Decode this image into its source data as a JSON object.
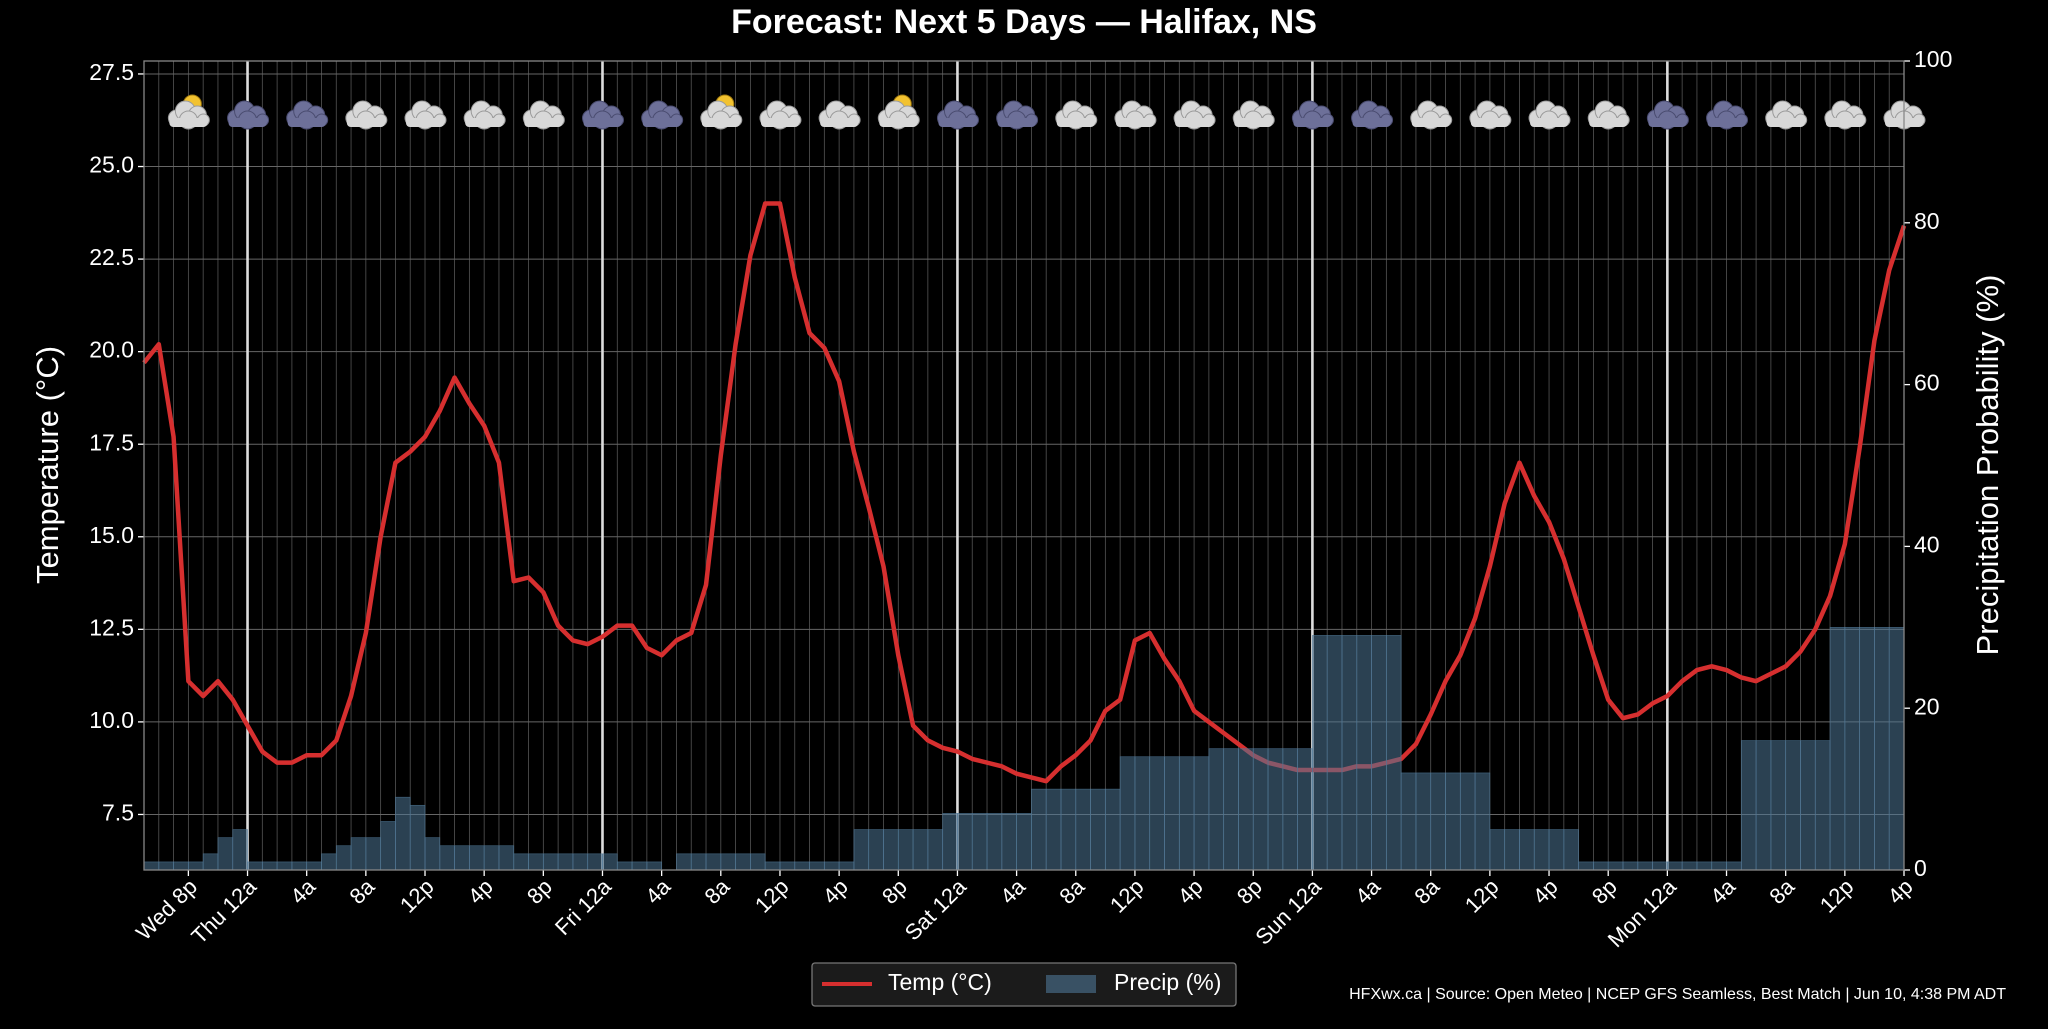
{
  "chart_data": {
    "type": "line",
    "title": "Forecast: Next 5 Days — Halifax, NS",
    "ylabel": "Temperature (°C)",
    "y2label": "Precipitation Probability (%)",
    "footnote": "HFXwx.ca | Source: Open Meteo | NCEP GFS Seamless, Best Match | Jun 10, 4:38 PM ADT",
    "legend": "bottom",
    "grid": true,
    "categories": [
      null,
      null,
      null,
      "Wed 8p",
      null,
      null,
      null,
      "Thu 12a",
      null,
      null,
      null,
      "4a",
      null,
      null,
      null,
      "8a",
      null,
      null,
      null,
      "12p",
      null,
      null,
      null,
      "4p",
      null,
      null,
      null,
      "8p",
      null,
      null,
      null,
      "Fri 12a",
      null,
      null,
      null,
      "4a",
      null,
      null,
      null,
      "8a",
      null,
      null,
      null,
      "12p",
      null,
      null,
      null,
      "4p",
      null,
      null,
      null,
      "8p",
      null,
      null,
      null,
      "Sat 12a",
      null,
      null,
      null,
      "4a",
      null,
      null,
      null,
      "8a",
      null,
      null,
      null,
      "12p",
      null,
      null,
      null,
      "4p",
      null,
      null,
      null,
      "8p",
      null,
      null,
      null,
      "Sun 12a",
      null,
      null,
      null,
      "4a",
      null,
      null,
      null,
      "8a",
      null,
      null,
      null,
      "12p",
      null,
      null,
      null,
      "4p",
      null,
      null,
      null,
      "8p",
      null,
      null,
      null,
      "Mon 12a",
      null,
      null,
      null,
      "4a",
      null,
      null,
      null,
      "8a",
      null,
      null,
      null,
      "12p",
      null,
      null,
      null,
      "4p"
    ],
    "series": [
      {
        "name": "Temp (°C)",
        "color": "#d62f2f",
        "values": [
          19.7,
          20.2,
          17.7,
          11.1,
          10.7,
          11.1,
          10.6,
          9.9,
          9.2,
          8.9,
          8.9,
          9.1,
          9.1,
          9.5,
          10.7,
          12.4,
          15.0,
          17.0,
          17.3,
          17.7,
          18.4,
          19.3,
          18.6,
          18.0,
          17.0,
          13.8,
          13.9,
          13.5,
          12.6,
          12.2,
          12.1,
          12.3,
          12.6,
          12.6,
          12.0,
          11.8,
          12.2,
          12.4,
          13.7,
          17.2,
          20.2,
          22.6,
          24.0,
          24.0,
          22.0,
          20.5,
          20.1,
          19.2,
          17.3,
          15.8,
          14.2,
          11.8,
          9.9,
          9.5,
          9.3,
          9.2,
          9.0,
          8.9,
          8.8,
          8.6,
          8.5,
          8.4,
          8.8,
          9.1,
          9.5,
          10.3,
          10.6,
          12.2,
          12.4,
          11.7,
          11.1,
          10.3,
          10.0,
          9.7,
          9.4,
          9.1,
          8.9,
          8.8,
          8.7,
          8.7,
          8.7,
          8.7,
          8.8,
          8.8,
          8.9,
          9.0,
          9.4,
          10.2,
          11.1,
          11.8,
          12.8,
          14.2,
          15.9,
          17.0,
          16.1,
          15.4,
          14.4,
          13.1,
          11.8,
          10.6,
          10.1,
          10.2,
          10.5,
          10.7,
          11.1,
          11.4,
          11.5,
          11.4,
          11.2,
          11.1,
          11.3,
          11.5,
          11.9,
          12.5,
          13.4,
          14.8,
          17.4,
          20.3,
          22.2,
          23.4
        ]
      },
      {
        "name": "Precip (%)",
        "type": "bar",
        "axis": "y2",
        "color": "#4f7796",
        "values": [
          1,
          1,
          1,
          1,
          2,
          4,
          5,
          1,
          1,
          1,
          1,
          1,
          2,
          3,
          4,
          4,
          6,
          9,
          8,
          4,
          3,
          3,
          3,
          3,
          3,
          2,
          2,
          2,
          2,
          2,
          2,
          2,
          1,
          1,
          1,
          0,
          2,
          2,
          2,
          2,
          2,
          2,
          1,
          1,
          1,
          1,
          1,
          1,
          5,
          5,
          5,
          5,
          5,
          5,
          7,
          7,
          7,
          7,
          7,
          7,
          10,
          10,
          10,
          10,
          10,
          10,
          14,
          14,
          14,
          14,
          14,
          14,
          15,
          15,
          15,
          15,
          15,
          15,
          15,
          29,
          29,
          29,
          29,
          29,
          29,
          12,
          12,
          12,
          12,
          12,
          12,
          5,
          5,
          5,
          5,
          5,
          5,
          1,
          1,
          1,
          1,
          1,
          1,
          1,
          1,
          1,
          1,
          1,
          16,
          16,
          16,
          16,
          16,
          16,
          30,
          30,
          30,
          30,
          30,
          30
        ]
      }
    ],
    "ylim": [
      6.0,
      27.85
    ],
    "yticks": [
      7.5,
      {
        "value": 10,
        "label": "10.0"
      },
      12.5,
      {
        "value": 15,
        "label": "15.0"
      },
      17.5,
      {
        "value": 20,
        "label": "20.0"
      },
      22.5,
      {
        "value": 25,
        "label": "25.0"
      },
      27.5
    ],
    "y2lim": [
      0,
      100
    ],
    "y2ticks": [
      0,
      20,
      40,
      60,
      80,
      100
    ]
  }
}
